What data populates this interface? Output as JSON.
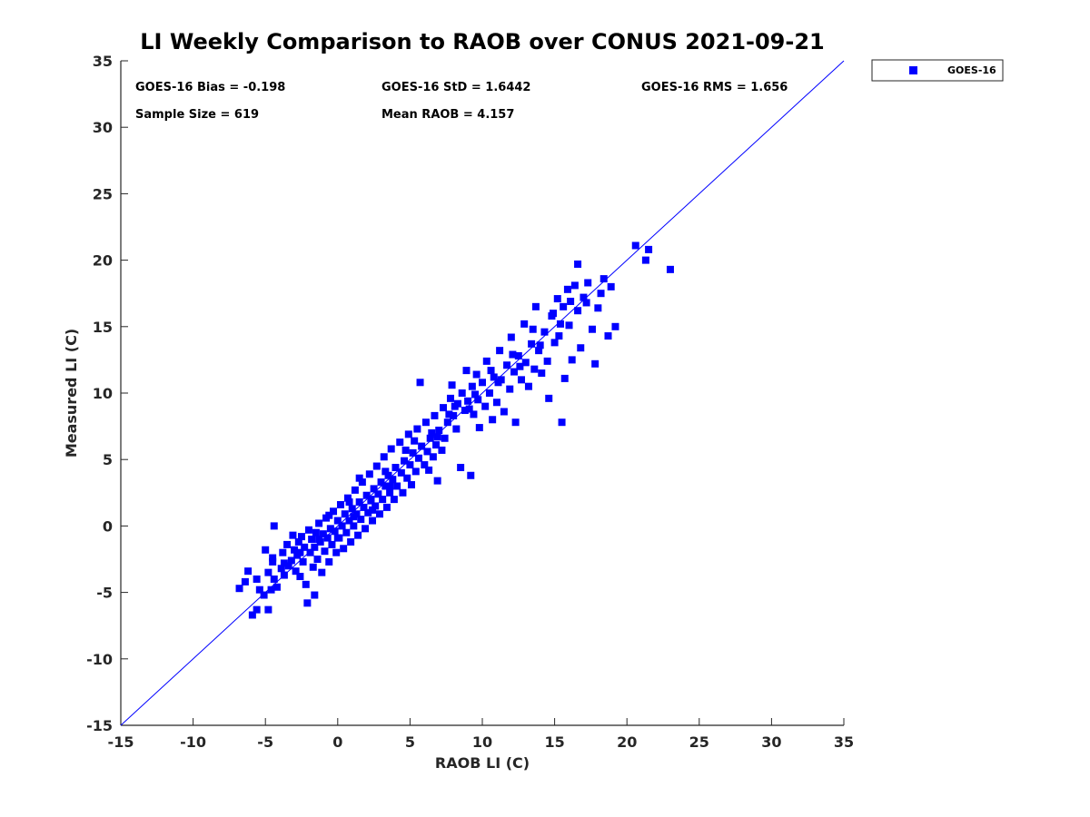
{
  "chart_data": {
    "type": "scatter",
    "title": "LI Weekly Comparison to RAOB over CONUS 2021-09-21",
    "xlabel": "RAOB LI (C)",
    "ylabel": "Measured LI (C)",
    "xlim": [
      -15,
      35
    ],
    "ylim": [
      -15,
      35
    ],
    "xticks": [
      -15,
      -10,
      -5,
      0,
      5,
      10,
      15,
      20,
      25,
      30,
      35
    ],
    "yticks": [
      -15,
      -10,
      -5,
      0,
      5,
      10,
      15,
      20,
      25,
      30,
      35
    ],
    "grid": false,
    "legend_position": "outside-top-right",
    "reference_line": {
      "from": [
        -15,
        -15
      ],
      "to": [
        35,
        35
      ],
      "color": "#0000ff",
      "label": "1:1 line"
    },
    "stats": {
      "bias": "GOES-16 Bias = -0.198",
      "std": "GOES-16 StD = 1.6442",
      "rms": "GOES-16 RMS = 1.656",
      "sample_size": "Sample Size = 619",
      "mean_raob": "Mean RAOB = 4.157"
    },
    "series": [
      {
        "name": "GOES-16",
        "color": "#0000ff",
        "marker": "square",
        "points": [
          [
            -6.8,
            -4.7
          ],
          [
            -6.4,
            -4.2
          ],
          [
            -6.2,
            -3.4
          ],
          [
            -5.9,
            -6.7
          ],
          [
            -5.6,
            -6.3
          ],
          [
            -5.6,
            -4.0
          ],
          [
            -5.4,
            -4.8
          ],
          [
            -5.1,
            -5.2
          ],
          [
            -5.0,
            -1.8
          ],
          [
            -4.8,
            -6.3
          ],
          [
            -4.8,
            -3.5
          ],
          [
            -4.6,
            -4.8
          ],
          [
            -4.5,
            -2.7
          ],
          [
            -4.5,
            -2.4
          ],
          [
            -4.4,
            0.0
          ],
          [
            -4.4,
            -4.0
          ],
          [
            -4.2,
            -4.6
          ],
          [
            -3.9,
            -3.2
          ],
          [
            -3.8,
            -2.0
          ],
          [
            -3.7,
            -3.7
          ],
          [
            -3.5,
            -1.4
          ],
          [
            -3.4,
            -3.0
          ],
          [
            -3.2,
            -2.6
          ],
          [
            -3.1,
            -0.7
          ],
          [
            -3.0,
            -1.8
          ],
          [
            -2.9,
            -3.4
          ],
          [
            -2.8,
            -2.2
          ],
          [
            -2.7,
            -1.2
          ],
          [
            -2.6,
            -3.8
          ],
          [
            -2.5,
            -0.8
          ],
          [
            -2.4,
            -2.7
          ],
          [
            -2.3,
            -1.6
          ],
          [
            -2.2,
            -4.4
          ],
          [
            -2.1,
            -5.8
          ],
          [
            -2.0,
            -0.3
          ],
          [
            -1.9,
            -2.0
          ],
          [
            -1.8,
            -1.0
          ],
          [
            -1.7,
            -3.1
          ],
          [
            -1.6,
            -5.2
          ],
          [
            -1.6,
            -1.6
          ],
          [
            -1.5,
            -0.5
          ],
          [
            -1.4,
            -2.5
          ],
          [
            -1.3,
            0.2
          ],
          [
            -1.2,
            -1.2
          ],
          [
            -1.1,
            -3.5
          ],
          [
            -1.0,
            -0.6
          ],
          [
            -0.9,
            -1.9
          ],
          [
            -0.8,
            0.6
          ],
          [
            -0.7,
            -0.9
          ],
          [
            -0.6,
            -2.7
          ],
          [
            -0.5,
            -0.2
          ],
          [
            -0.4,
            -1.4
          ],
          [
            -0.3,
            1.1
          ],
          [
            -0.2,
            -0.4
          ],
          [
            -0.1,
            -2.0
          ],
          [
            0.0,
            0.4
          ],
          [
            0.1,
            -0.9
          ],
          [
            0.2,
            1.6
          ],
          [
            0.3,
            0.0
          ],
          [
            0.4,
            -1.7
          ],
          [
            0.5,
            0.9
          ],
          [
            0.6,
            -0.5
          ],
          [
            0.7,
            2.1
          ],
          [
            0.8,
            0.4
          ],
          [
            0.9,
            -1.2
          ],
          [
            1.0,
            1.3
          ],
          [
            1.1,
            0.0
          ],
          [
            1.2,
            2.7
          ],
          [
            1.3,
            0.9
          ],
          [
            1.4,
            -0.7
          ],
          [
            1.5,
            1.8
          ],
          [
            1.6,
            0.5
          ],
          [
            1.7,
            3.3
          ],
          [
            1.8,
            1.4
          ],
          [
            1.9,
            -0.2
          ],
          [
            2.0,
            2.3
          ],
          [
            2.1,
            1.0
          ],
          [
            2.2,
            3.9
          ],
          [
            2.3,
            1.9
          ],
          [
            2.4,
            0.4
          ],
          [
            2.5,
            2.8
          ],
          [
            2.6,
            1.5
          ],
          [
            2.7,
            4.5
          ],
          [
            2.8,
            2.4
          ],
          [
            2.9,
            0.9
          ],
          [
            3.0,
            3.3
          ],
          [
            3.1,
            2.0
          ],
          [
            3.2,
            5.2
          ],
          [
            3.3,
            3.0
          ],
          [
            3.4,
            1.4
          ],
          [
            3.5,
            3.8
          ],
          [
            3.6,
            2.5
          ],
          [
            3.7,
            5.8
          ],
          [
            3.8,
            3.5
          ],
          [
            3.9,
            2.0
          ],
          [
            4.0,
            4.4
          ],
          [
            4.1,
            3.0
          ],
          [
            4.3,
            6.3
          ],
          [
            4.4,
            4.0
          ],
          [
            4.5,
            2.5
          ],
          [
            4.6,
            4.9
          ],
          [
            4.8,
            3.6
          ],
          [
            4.9,
            6.9
          ],
          [
            5.0,
            4.6
          ],
          [
            5.1,
            3.1
          ],
          [
            5.2,
            5.5
          ],
          [
            5.4,
            4.1
          ],
          [
            5.5,
            7.3
          ],
          [
            5.6,
            5.1
          ],
          [
            5.7,
            10.8
          ],
          [
            5.8,
            6.0
          ],
          [
            6.0,
            4.6
          ],
          [
            6.1,
            7.8
          ],
          [
            6.2,
            5.6
          ],
          [
            6.3,
            4.2
          ],
          [
            6.4,
            6.6
          ],
          [
            6.6,
            5.2
          ],
          [
            6.7,
            8.3
          ],
          [
            6.8,
            6.1
          ],
          [
            6.9,
            3.4
          ],
          [
            7.0,
            7.2
          ],
          [
            7.2,
            5.7
          ],
          [
            7.3,
            8.9
          ],
          [
            7.4,
            6.6
          ],
          [
            7.6,
            7.8
          ],
          [
            7.8,
            9.6
          ],
          [
            7.9,
            10.6
          ],
          [
            8.0,
            8.3
          ],
          [
            8.2,
            7.3
          ],
          [
            8.3,
            9.2
          ],
          [
            8.5,
            4.4
          ],
          [
            8.6,
            10.0
          ],
          [
            8.8,
            8.7
          ],
          [
            8.9,
            11.7
          ],
          [
            9.0,
            9.4
          ],
          [
            9.2,
            3.8
          ],
          [
            9.3,
            10.5
          ],
          [
            9.4,
            8.4
          ],
          [
            9.6,
            11.4
          ],
          [
            9.7,
            9.5
          ],
          [
            9.8,
            7.4
          ],
          [
            10.0,
            10.8
          ],
          [
            10.2,
            9.0
          ],
          [
            10.3,
            12.4
          ],
          [
            10.5,
            10.0
          ],
          [
            10.7,
            8.0
          ],
          [
            10.8,
            11.2
          ],
          [
            11.0,
            9.3
          ],
          [
            11.2,
            13.2
          ],
          [
            11.3,
            11.0
          ],
          [
            11.5,
            8.6
          ],
          [
            11.7,
            12.1
          ],
          [
            11.9,
            10.3
          ],
          [
            12.0,
            14.2
          ],
          [
            12.2,
            11.6
          ],
          [
            12.3,
            7.8
          ],
          [
            12.5,
            12.8
          ],
          [
            12.7,
            11.0
          ],
          [
            12.9,
            15.2
          ],
          [
            13.0,
            12.3
          ],
          [
            13.2,
            10.5
          ],
          [
            13.4,
            13.7
          ],
          [
            13.6,
            11.8
          ],
          [
            13.7,
            16.5
          ],
          [
            13.9,
            13.2
          ],
          [
            14.1,
            11.5
          ],
          [
            14.3,
            14.6
          ],
          [
            14.5,
            12.4
          ],
          [
            14.6,
            9.6
          ],
          [
            14.8,
            15.8
          ],
          [
            15.0,
            13.8
          ],
          [
            15.2,
            17.1
          ],
          [
            15.3,
            14.3
          ],
          [
            15.5,
            7.8
          ],
          [
            15.6,
            16.5
          ],
          [
            15.7,
            11.1
          ],
          [
            15.9,
            17.8
          ],
          [
            16.0,
            15.1
          ],
          [
            16.2,
            12.5
          ],
          [
            16.4,
            18.1
          ],
          [
            16.6,
            16.2
          ],
          [
            16.6,
            19.7
          ],
          [
            16.8,
            13.4
          ],
          [
            17.0,
            17.2
          ],
          [
            17.3,
            18.3
          ],
          [
            17.6,
            14.8
          ],
          [
            17.8,
            12.2
          ],
          [
            18.0,
            16.4
          ],
          [
            18.2,
            17.5
          ],
          [
            18.4,
            18.6
          ],
          [
            18.7,
            14.3
          ],
          [
            18.9,
            18.0
          ],
          [
            19.2,
            15.0
          ],
          [
            20.6,
            21.1
          ],
          [
            21.3,
            20.0
          ],
          [
            21.5,
            20.8
          ],
          [
            23.0,
            19.3
          ],
          [
            0.8,
            1.8
          ],
          [
            1.5,
            3.6
          ],
          [
            2.4,
            1.2
          ],
          [
            -0.6,
            0.8
          ],
          [
            3.3,
            4.1
          ],
          [
            4.7,
            5.7
          ],
          [
            6.5,
            7.0
          ],
          [
            7.7,
            8.4
          ],
          [
            9.1,
            8.8
          ],
          [
            10.6,
            11.7
          ],
          [
            12.1,
            12.9
          ],
          [
            13.5,
            14.8
          ],
          [
            14.9,
            16.0
          ],
          [
            16.1,
            16.9
          ],
          [
            -2.6,
            -2.0
          ],
          [
            -1.3,
            -1.0
          ],
          [
            0.0,
            -0.9
          ],
          [
            1.1,
            0.7
          ],
          [
            2.3,
            2.0
          ],
          [
            3.6,
            3.0
          ],
          [
            5.3,
            6.4
          ],
          [
            6.9,
            6.7
          ],
          [
            8.1,
            9.0
          ],
          [
            9.5,
            9.9
          ],
          [
            11.1,
            10.8
          ],
          [
            12.6,
            12.0
          ],
          [
            14.0,
            13.6
          ],
          [
            15.4,
            15.2
          ],
          [
            17.2,
            16.8
          ],
          [
            -3.7,
            -2.8
          ]
        ]
      }
    ]
  }
}
